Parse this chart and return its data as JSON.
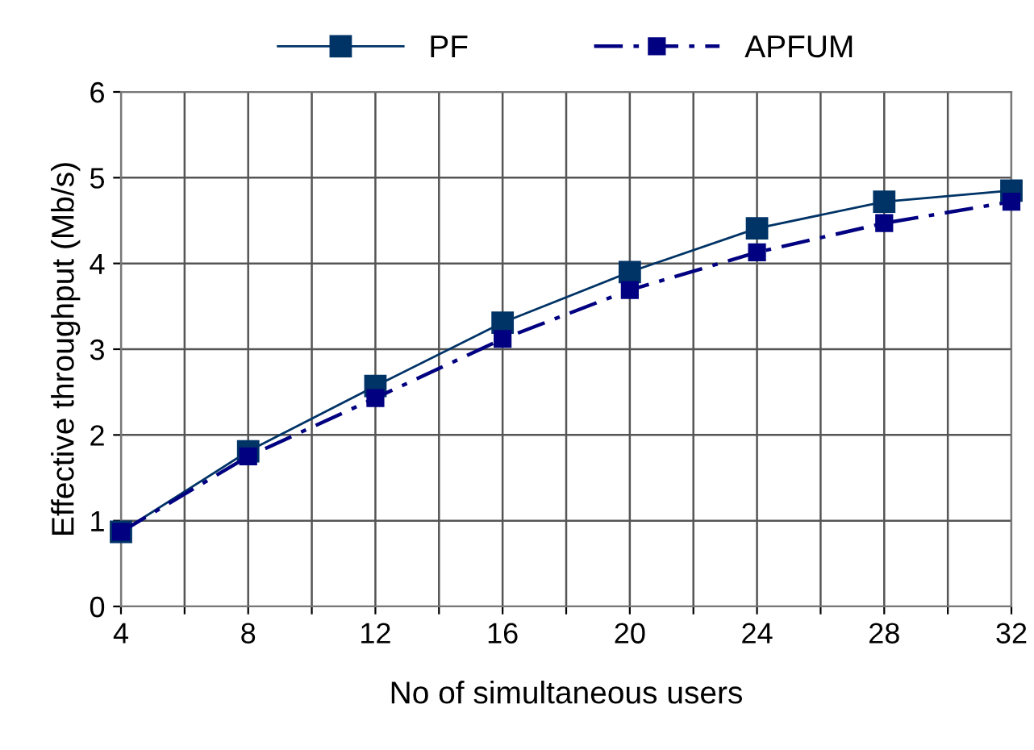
{
  "chart_data": {
    "type": "line",
    "xlabel": "No of simultaneous users",
    "ylabel": "Effective throughput (Mb/s)",
    "x": [
      4,
      8,
      12,
      16,
      20,
      24,
      28,
      32
    ],
    "series": [
      {
        "name": "PF",
        "color": "#003366",
        "line_style": "solid",
        "values": [
          0.87,
          1.81,
          2.57,
          3.31,
          3.9,
          4.41,
          4.72,
          4.85
        ]
      },
      {
        "name": "APFUM",
        "color": "#000080",
        "line_style": "dashdot",
        "values": [
          0.87,
          1.75,
          2.43,
          3.12,
          3.69,
          4.13,
          4.47,
          4.72
        ]
      }
    ],
    "xlim": [
      4,
      32
    ],
    "xticks": [
      4,
      {
        "value": 6,
        "label": null
      },
      8,
      {
        "value": 10,
        "label": null
      },
      12,
      {
        "value": 14,
        "label": null
      },
      16,
      {
        "value": 18,
        "label": null
      },
      20,
      {
        "value": 22,
        "label": null
      },
      24,
      {
        "value": 26,
        "label": null
      },
      28,
      {
        "value": 30,
        "label": null
      },
      32
    ],
    "ylim": [
      0,
      6
    ],
    "yticks": [
      0,
      1,
      2,
      3,
      4,
      5,
      6
    ],
    "grid": true,
    "legend": "top",
    "marker": "square"
  }
}
